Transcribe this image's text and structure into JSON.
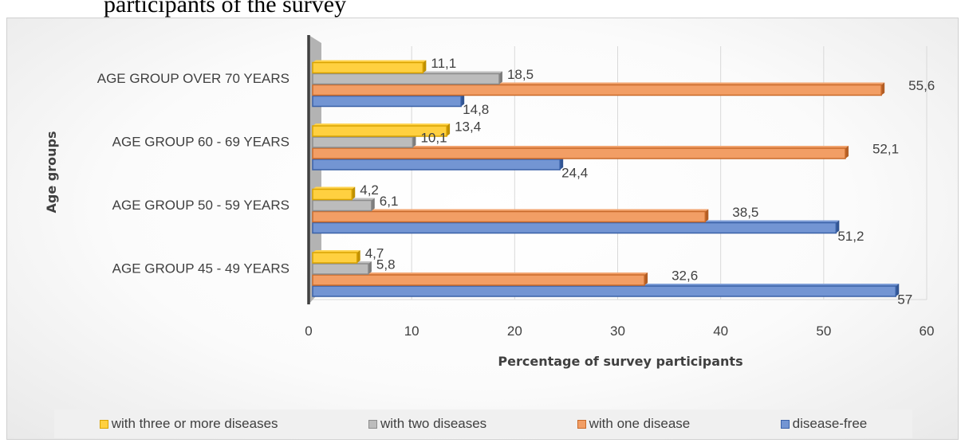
{
  "header_text": "      participants of the survey",
  "chart_data": {
    "type": "bar",
    "orientation": "horizontal",
    "categories": [
      "AGE GROUP 45 - 49 YEARS",
      "AGE GROUP 50 - 59 YEARS",
      "AGE GROUP 60 - 69 YEARS",
      "AGE GROUP OVER 70 YEARS"
    ],
    "series": [
      {
        "name": "disease-free",
        "color": "#4472c4",
        "values": [
          57,
          51.2,
          24.4,
          14.8
        ],
        "labels": [
          "57",
          "51,2",
          "24,4",
          "14,8"
        ]
      },
      {
        "name": "with one disease",
        "color": "#ed7d31",
        "values": [
          32.6,
          38.5,
          52.1,
          55.6
        ],
        "labels": [
          "32,6",
          "38,5",
          "52,1",
          "55,6"
        ]
      },
      {
        "name": "with two diseases",
        "color": "#a5a5a5",
        "values": [
          5.8,
          6.1,
          10.1,
          18.5
        ],
        "labels": [
          "5,8",
          "6,1",
          "10,1",
          "18,5"
        ]
      },
      {
        "name": "with three or more diseases",
        "color": "#ffc000",
        "values": [
          4.7,
          4.2,
          13.4,
          11.1
        ],
        "labels": [
          "4,7",
          "4,2",
          "13,4",
          "11,1"
        ]
      }
    ],
    "legend_order": [
      "with three or more diseases",
      "with two diseases",
      "with one disease",
      "disease-free"
    ],
    "xlabel": "Percentage of survey participants",
    "ylabel": "Age groups",
    "xlim": [
      0,
      60
    ],
    "xticks": [
      0,
      10,
      20,
      30,
      40,
      50,
      60
    ],
    "grid": "vertical",
    "legend_position": "bottom"
  }
}
